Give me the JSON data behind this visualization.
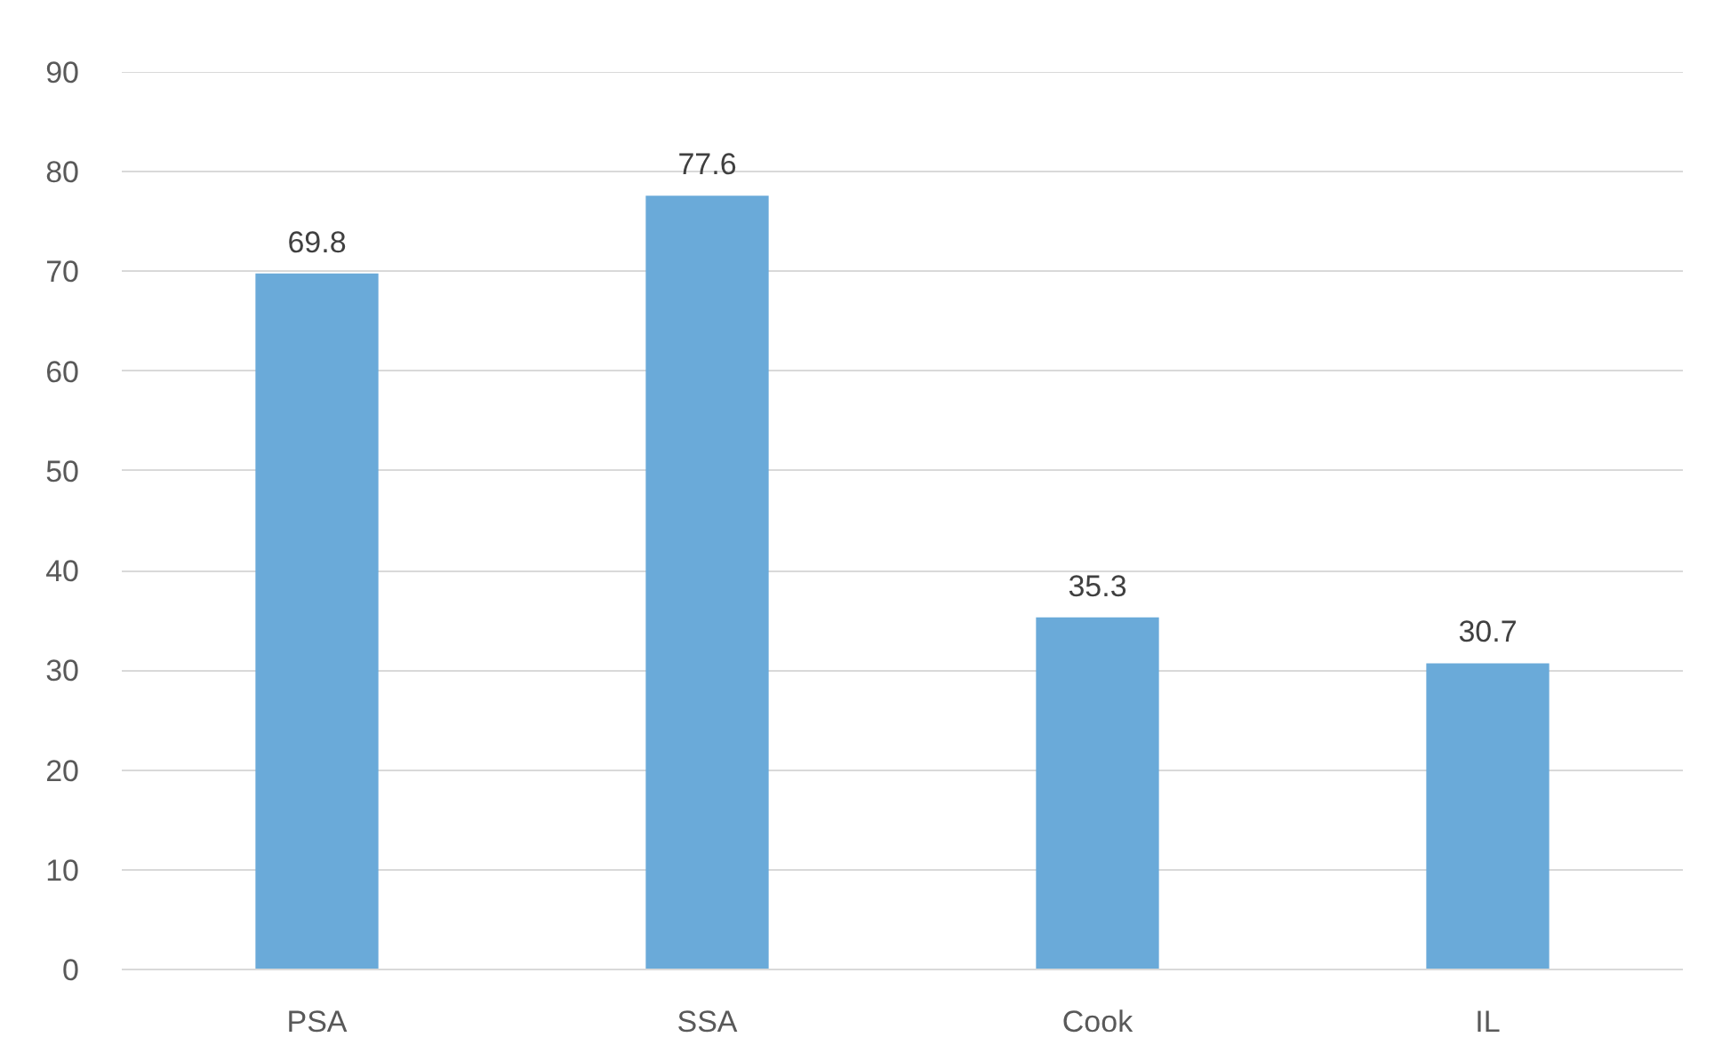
{
  "chart_data": {
    "type": "bar",
    "categories": [
      "PSA",
      "SSA",
      "Cook",
      "IL"
    ],
    "values": [
      69.8,
      77.6,
      35.3,
      30.7
    ],
    "color": "#6aaad9",
    "ylim": [
      0,
      90
    ],
    "yticks": [
      0,
      10,
      20,
      30,
      40,
      50,
      60,
      70,
      80,
      90
    ],
    "grid": "y",
    "data_labels": true
  }
}
